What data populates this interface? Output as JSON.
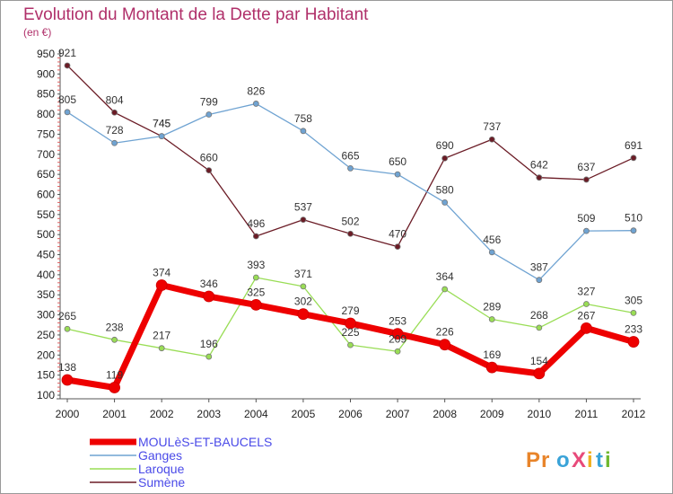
{
  "chart_data": {
    "type": "line",
    "title": "Evolution du Montant de la Dette par Habitant",
    "unit": "(en €)",
    "x": [
      "2000",
      "2001",
      "2002",
      "2003",
      "2004",
      "2005",
      "2006",
      "2007",
      "2008",
      "2009",
      "2010",
      "2011",
      "2012"
    ],
    "ylim": [
      100,
      950
    ],
    "yticks": [
      100,
      150,
      200,
      250,
      300,
      350,
      400,
      450,
      500,
      550,
      600,
      650,
      700,
      750,
      800,
      850,
      900,
      950
    ],
    "grid": false,
    "legend_position": "bottom-left",
    "series": [
      {
        "name": "Sumène",
        "color": "#6b1c26",
        "values": [
          921,
          804,
          745,
          660,
          496,
          537,
          502,
          470,
          690,
          737,
          642,
          637,
          691
        ]
      },
      {
        "name": "Ganges",
        "color": "#6fa3d2",
        "values": [
          805,
          728,
          745,
          799,
          826,
          758,
          665,
          650,
          580,
          456,
          387,
          509,
          510
        ]
      },
      {
        "name": "Laroque",
        "color": "#99dd55",
        "values": [
          265,
          238,
          217,
          196,
          393,
          371,
          225,
          209,
          364,
          289,
          268,
          327,
          305
        ]
      },
      {
        "name": "MOULèS-ET-BAUCELS",
        "color": "#ee0000",
        "values": [
          138,
          119,
          374,
          346,
          325,
          302,
          279,
          253,
          226,
          169,
          154,
          267,
          233
        ]
      }
    ],
    "legend": [
      "MOULèS-ET-BAUCELS",
      "Ganges",
      "Laroque",
      "Sumène"
    ]
  },
  "logo": {
    "text": "ProXiti"
  }
}
